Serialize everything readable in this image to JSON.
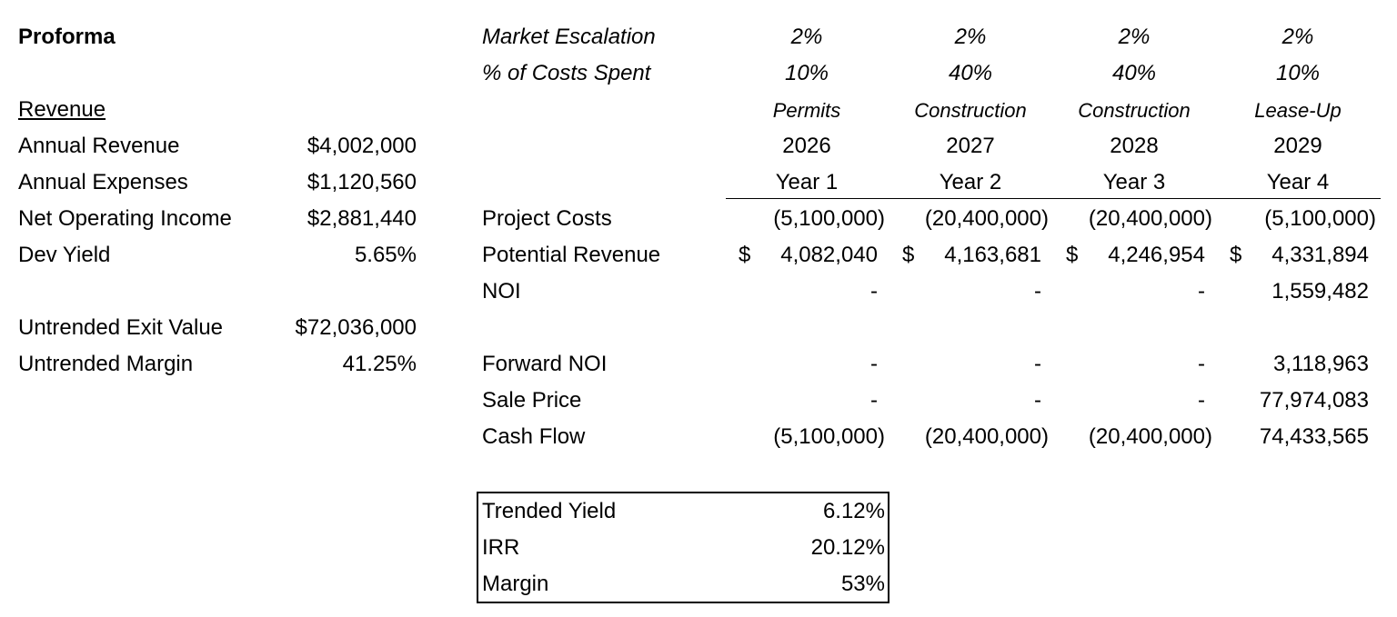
{
  "left": {
    "title": "Proforma",
    "revenue_heading": "Revenue",
    "rows": [
      {
        "label": "Annual Revenue",
        "value": "$4,002,000"
      },
      {
        "label": "Annual Expenses",
        "value": "$1,120,560"
      },
      {
        "label": "Net Operating Income",
        "value": "$2,881,440"
      },
      {
        "label": "Dev Yield",
        "value": "5.65%"
      }
    ],
    "exit_rows": [
      {
        "label": "Untrended Exit Value",
        "value": "$72,036,000"
      },
      {
        "label": "Untrended Margin",
        "value": "41.25%"
      }
    ]
  },
  "header": {
    "market_escalation_label": "Market Escalation",
    "costs_spent_label": "% of Costs Spent",
    "columns": [
      {
        "escalation": "2%",
        "pct_spent": "10%",
        "phase": "Permits",
        "year": "2026",
        "year_label": "Year 1"
      },
      {
        "escalation": "2%",
        "pct_spent": "40%",
        "phase": "Construction",
        "year": "2027",
        "year_label": "Year 2"
      },
      {
        "escalation": "2%",
        "pct_spent": "40%",
        "phase": "Construction",
        "year": "2028",
        "year_label": "Year 3"
      },
      {
        "escalation": "2%",
        "pct_spent": "10%",
        "phase": "Lease-Up",
        "year": "2029",
        "year_label": "Year 4"
      }
    ]
  },
  "table": {
    "currency_symbol": "$",
    "rows": [
      {
        "label": "Project Costs",
        "values": [
          "(5,100,000)",
          "(20,400,000)",
          "(20,400,000)",
          "(5,100,000)"
        ]
      },
      {
        "label": "Potential Revenue",
        "values": [
          "4,082,040",
          "4,163,681",
          "4,246,954",
          "4,331,894"
        ]
      },
      {
        "label": "NOI",
        "values": [
          "-",
          "-",
          "-",
          "1,559,482"
        ]
      },
      {
        "label": "Forward NOI",
        "values": [
          "-",
          "-",
          "-",
          "3,118,963"
        ]
      },
      {
        "label": "Sale Price",
        "values": [
          "-",
          "-",
          "-",
          "77,974,083"
        ]
      },
      {
        "label": "Cash Flow",
        "values": [
          "(5,100,000)",
          "(20,400,000)",
          "(20,400,000)",
          "74,433,565"
        ]
      }
    ]
  },
  "summary": {
    "rows": [
      {
        "label": "Trended Yield",
        "value": "6.12%"
      },
      {
        "label": "IRR",
        "value": "20.12%"
      },
      {
        "label": "Margin",
        "value": "53%"
      }
    ]
  }
}
